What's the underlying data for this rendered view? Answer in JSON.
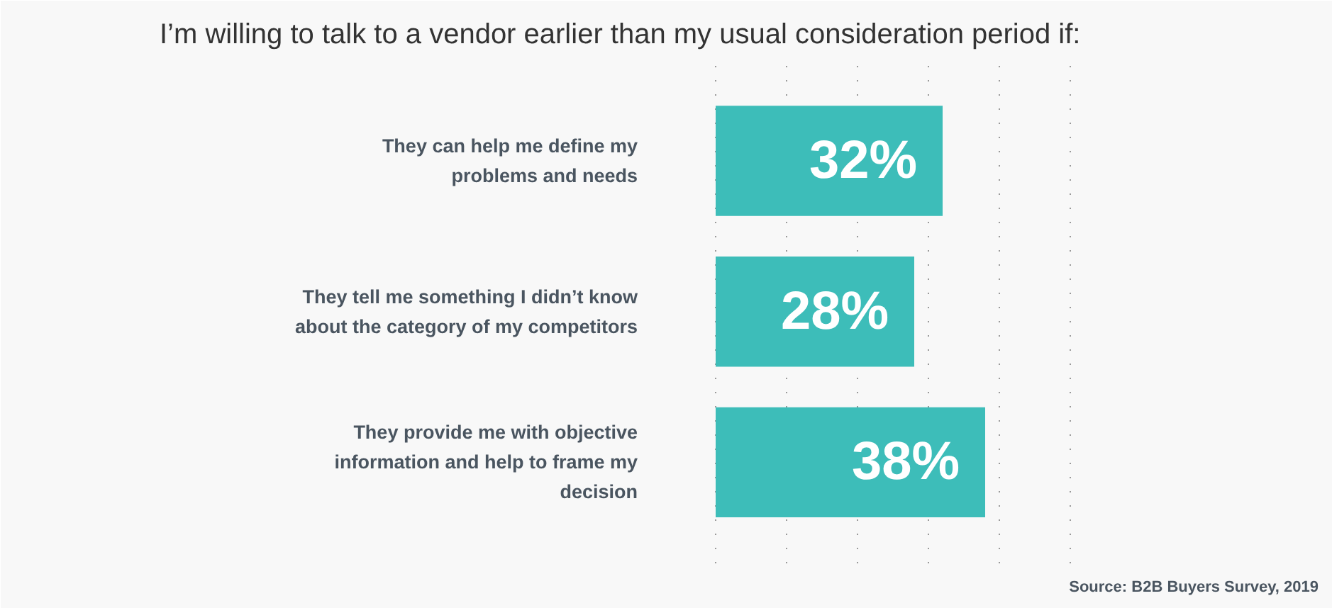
{
  "chart_data": {
    "type": "bar",
    "orientation": "horizontal",
    "title": "I’m willing to talk to a vendor earlier than my usual consideration period if:",
    "categories": [
      "They can help me define my\nproblems and needs",
      "They tell me something I didn’t know\nabout the category of my competitors",
      "They provide me with objective\ninformation and help to frame my\ndecision"
    ],
    "values": [
      32,
      28,
      38
    ],
    "color": "#3dbdb9",
    "xlim": [
      -2,
      52
    ],
    "xticks": [
      0,
      10,
      20,
      30,
      40,
      50
    ],
    "tick_labels": "y",
    "grid": "x",
    "data_labels": true,
    "value_labels": [
      "32%",
      "28%",
      "38%"
    ],
    "annotations": [
      "Source: B2B Buyers Survey, 2019"
    ]
  }
}
